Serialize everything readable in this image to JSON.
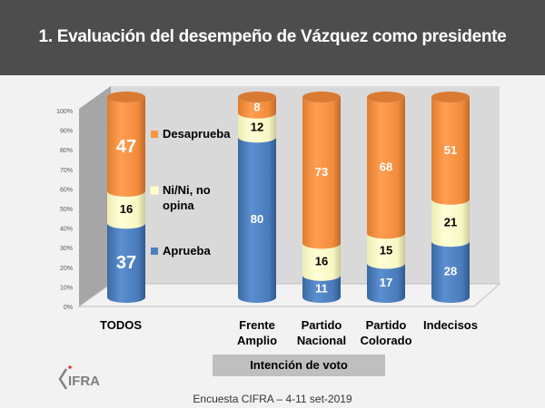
{
  "header": {
    "title": "1.   Evaluación del desempeño de Vázquez como presidente"
  },
  "chart_data": {
    "type": "bar",
    "stacked": true,
    "style": "3d-cylinder",
    "title": "Evaluación del desempeño de Vázquez como presidente",
    "categories": [
      "TODOS",
      "Frente Amplio",
      "Partido Nacional",
      "Partido Colorado",
      "Indecisos"
    ],
    "category_lines": [
      [
        "TODOS"
      ],
      [
        "Frente",
        "Amplio"
      ],
      [
        "Partido",
        "Nacional"
      ],
      [
        "Partido",
        "Colorado"
      ],
      [
        "Indecisos"
      ]
    ],
    "series": [
      {
        "name": "Aprueba",
        "color": "#4f81bd",
        "label_color": "#ffffff",
        "values": [
          37,
          80,
          11,
          17,
          28
        ]
      },
      {
        "name": "Ni/Ni, no opina",
        "color": "#ffffcc",
        "label_color": "#000000",
        "values": [
          16,
          12,
          16,
          15,
          21
        ]
      },
      {
        "name": "Desaprueba",
        "color": "#f79646",
        "label_color": "#ffffff",
        "values": [
          47,
          8,
          73,
          68,
          51
        ]
      }
    ],
    "yticks": [
      "0%",
      "10%",
      "20%",
      "30%",
      "40%",
      "50%",
      "60%",
      "70%",
      "80%",
      "90%",
      "100%"
    ],
    "ylim": [
      0,
      100
    ],
    "xlabel": "Intención de voto",
    "ylabel": "",
    "legend": [
      {
        "label_lines": [
          "Desaprueba"
        ],
        "color": "#f79646"
      },
      {
        "label_lines": [
          "Ni/Ni, no",
          "opina"
        ],
        "color": "#ffffcc"
      },
      {
        "label_lines": [
          "Aprueba"
        ],
        "color": "#4f81bd"
      }
    ],
    "legend_position": "inline-left",
    "grid": false
  },
  "group_label": "Intención de voto",
  "footer": "Encuesta CIFRA – 4-11 set-2019",
  "logo": {
    "text": "CIFRA",
    "dot_color": "#e53935"
  }
}
